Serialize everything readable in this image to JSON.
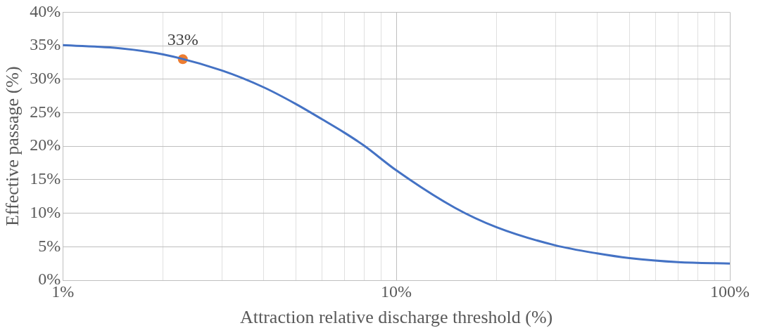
{
  "chart_data": {
    "type": "line",
    "xlabel": "Attraction relative discharge threshold (%)",
    "ylabel": "Effective passage (%)",
    "log": "x",
    "grid": true,
    "legend": false,
    "marker": "none",
    "line_style": "solid",
    "xlim": [
      1,
      100
    ],
    "xticks": [
      {
        "value": 1,
        "label": "1%"
      },
      {
        "value": 2,
        "label": null
      },
      {
        "value": 3,
        "label": null
      },
      {
        "value": 4,
        "label": null
      },
      {
        "value": 5,
        "label": null
      },
      {
        "value": 6,
        "label": null
      },
      {
        "value": 7,
        "label": null
      },
      {
        "value": 8,
        "label": null
      },
      {
        "value": 9,
        "label": null
      },
      {
        "value": 10,
        "label": "10%"
      },
      {
        "value": 20,
        "label": null
      },
      {
        "value": 30,
        "label": null
      },
      {
        "value": 40,
        "label": null
      },
      {
        "value": 50,
        "label": null
      },
      {
        "value": 60,
        "label": null
      },
      {
        "value": 70,
        "label": null
      },
      {
        "value": 80,
        "label": null
      },
      {
        "value": 90,
        "label": null
      },
      {
        "value": 100,
        "label": "100%"
      }
    ],
    "ylim": [
      0,
      40
    ],
    "yticks": [
      {
        "value": 0,
        "label": "0%"
      },
      {
        "value": 5,
        "label": "5%"
      },
      {
        "value": 10,
        "label": "10%"
      },
      {
        "value": 15,
        "label": "15%"
      },
      {
        "value": 20,
        "label": "20%"
      },
      {
        "value": 25,
        "label": "25%"
      },
      {
        "value": 30,
        "label": "30%"
      },
      {
        "value": 35,
        "label": "35%"
      },
      {
        "value": 40,
        "label": "40%"
      }
    ],
    "series": [
      {
        "color": "#4472c4",
        "x": [
          1,
          1.5,
          2,
          3,
          4,
          5,
          6,
          7,
          8,
          10,
          15,
          20,
          30,
          40,
          50,
          70,
          100
        ],
        "values": [
          35.1,
          34.6,
          33.7,
          31.3,
          28.8,
          26.3,
          24.0,
          22.0,
          20.1,
          16.4,
          10.8,
          7.9,
          5.2,
          4.0,
          3.3,
          2.7,
          2.5
        ]
      },
      {
        "type": "scatter",
        "color": "#ed7d31",
        "marker": "circle",
        "x": [
          2.29
        ],
        "values": [
          33.0
        ],
        "value_labels": [
          "33%"
        ]
      }
    ]
  }
}
